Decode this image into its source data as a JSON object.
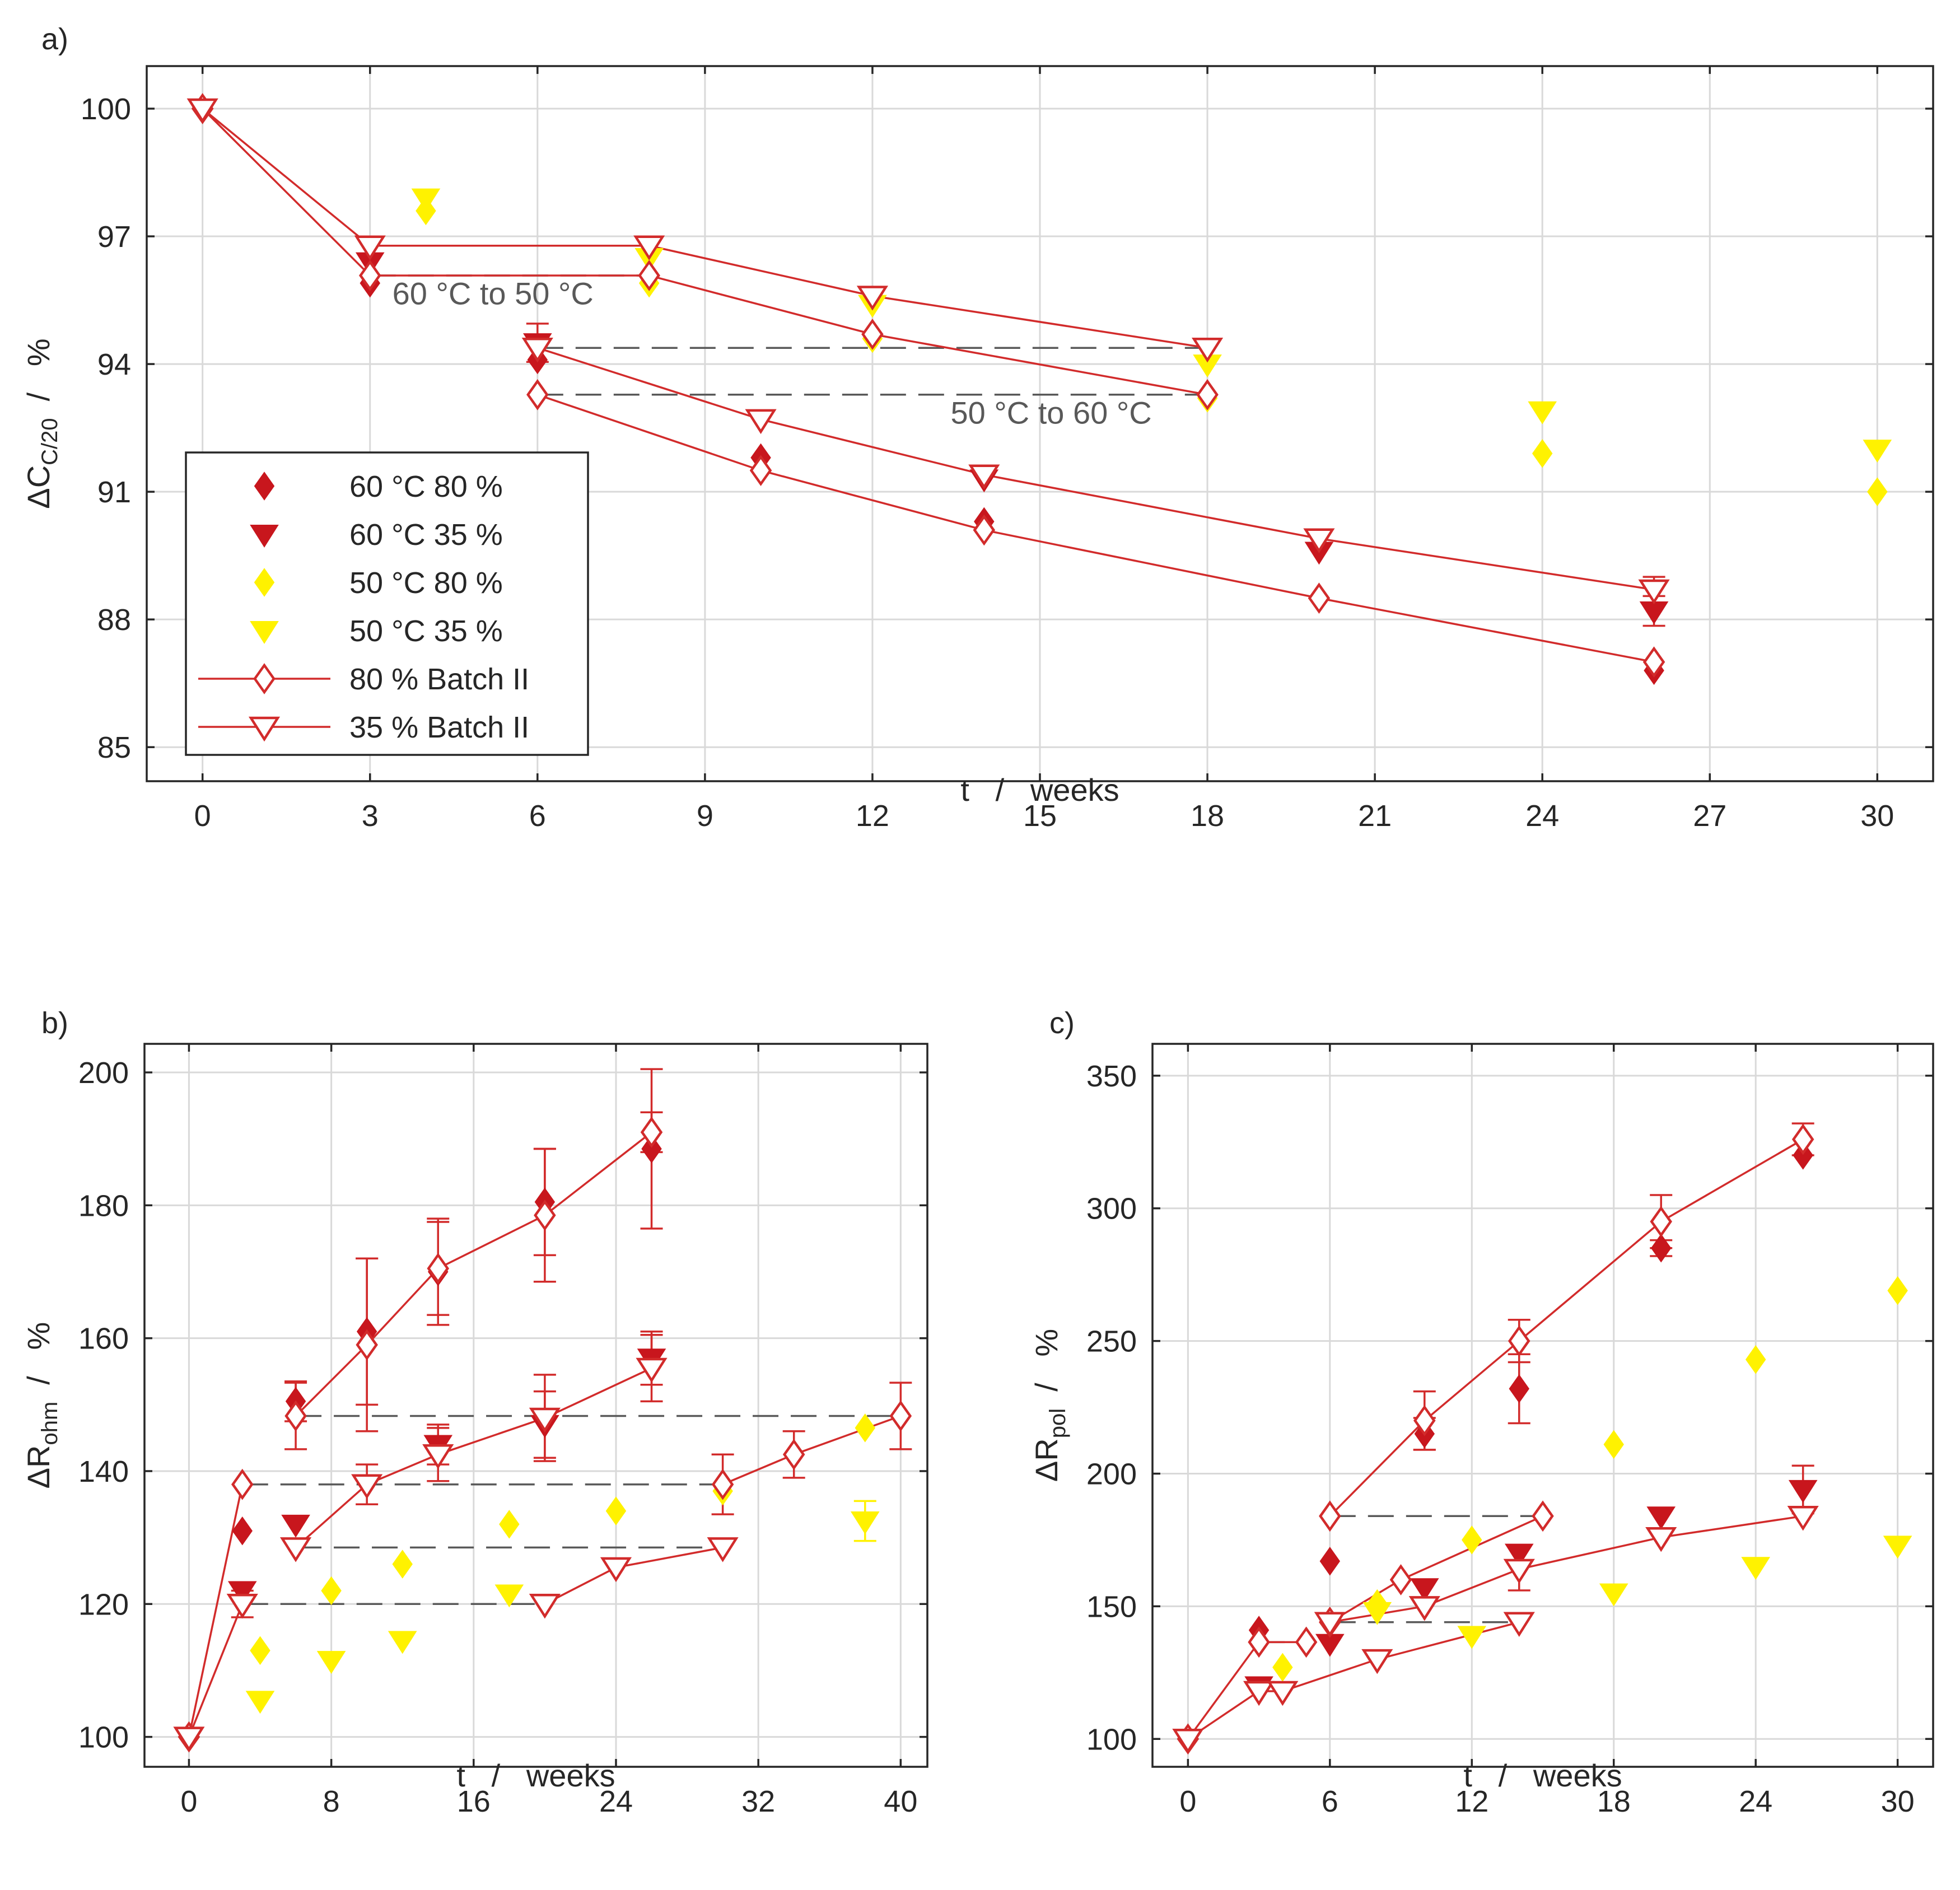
{
  "colors": {
    "dark_red": "#c8161d",
    "line_red": "#d22b2b",
    "yellow": "#fff200",
    "grid": "#d9d9d9",
    "axis": "#262626",
    "dash": "#595959"
  },
  "chart_data": [
    {
      "id": "a",
      "panel_label": "a)",
      "type": "scatter",
      "xlabel": "t   /   weeks",
      "ylabel_main": "ΔC",
      "ylabel_sub": "C/20",
      "ylabel_unit": "/   %",
      "xlim": [
        -1.0,
        31.0
      ],
      "ylim": [
        84.2,
        101.0
      ],
      "xticks": [
        0,
        3,
        6,
        9,
        12,
        15,
        18,
        21,
        24,
        27,
        30
      ],
      "yticks": [
        85,
        88,
        91,
        94,
        97,
        100
      ],
      "grid": true,
      "legend_position": "lower-left",
      "legend": [
        {
          "marker": "diamond",
          "filled": true,
          "color": "dark_red",
          "line": false,
          "label": "60 °C 80 %"
        },
        {
          "marker": "tri",
          "filled": true,
          "color": "dark_red",
          "line": false,
          "label": "60 °C 35 %"
        },
        {
          "marker": "diamond",
          "filled": true,
          "color": "yellow",
          "line": false,
          "label": "50 °C 80 %"
        },
        {
          "marker": "tri",
          "filled": true,
          "color": "yellow",
          "line": false,
          "label": "50 °C 35 %"
        },
        {
          "marker": "diamond",
          "filled": false,
          "color": "line_red",
          "line": true,
          "label": "80 % Batch II"
        },
        {
          "marker": "tri",
          "filled": false,
          "color": "line_red",
          "line": true,
          "label": "35 % Batch II"
        }
      ],
      "annotations": [
        {
          "text": "60 °C to 50 °C",
          "x": 3.4,
          "y": 95.4
        },
        {
          "text": "50 °C to 60 °C",
          "x": 13.4,
          "y": 92.6
        }
      ],
      "dashed_lines": [
        {
          "x1": 3,
          "x2": 8,
          "y": 96.78
        },
        {
          "x1": 3,
          "x2": 8,
          "y": 96.08
        },
        {
          "x1": 6,
          "x2": 18,
          "y": 94.38
        },
        {
          "x1": 6,
          "x2": 18,
          "y": 93.28
        }
      ],
      "series": [
        {
          "name": "60 °C 80 %",
          "marker": "diamond",
          "filled": true,
          "color": "dark_red",
          "line": false,
          "x": [
            0,
            3,
            6,
            10,
            14,
            20,
            26
          ],
          "y": [
            100,
            95.9,
            94.1,
            91.8,
            90.3,
            88.5,
            86.8
          ]
        },
        {
          "name": "60 °C 35 %",
          "marker": "tri",
          "filled": true,
          "color": "dark_red",
          "line": false,
          "x": [
            0,
            3,
            6,
            14,
            20,
            26
          ],
          "y": [
            100,
            96.4,
            94.5,
            91.3,
            89.6,
            88.2
          ],
          "err": [
            0,
            0,
            0.45,
            0,
            0,
            0.35
          ]
        },
        {
          "name": "50 °C 80 %",
          "marker": "diamond",
          "filled": true,
          "color": "yellow",
          "line": false,
          "x": [
            4,
            8,
            12,
            18,
            24,
            30
          ],
          "y": [
            97.6,
            95.9,
            94.6,
            93.2,
            91.9,
            91.0
          ]
        },
        {
          "name": "50 °C 35 %",
          "marker": "tri",
          "filled": true,
          "color": "yellow",
          "line": false,
          "x": [
            4,
            8,
            12,
            18,
            24,
            30
          ],
          "y": [
            97.9,
            96.5,
            95.4,
            94.0,
            92.9,
            92.0
          ]
        },
        {
          "name": "80 % Batch II",
          "marker": "diamond",
          "filled": false,
          "color": "line_red",
          "line": true,
          "x": [
            0,
            3,
            8,
            12,
            18
          ],
          "y": [
            100,
            96.08,
            96.08,
            94.7,
            93.28
          ]
        },
        {
          "name": "80 % Batch II",
          "marker": "diamond",
          "filled": false,
          "color": "line_red",
          "line": true,
          "x": [
            6,
            10,
            14,
            20,
            26
          ],
          "y": [
            93.28,
            91.5,
            90.1,
            88.5,
            87.0
          ]
        },
        {
          "name": "35 % Batch II",
          "marker": "tri",
          "filled": false,
          "color": "line_red",
          "line": true,
          "x": [
            0,
            3,
            8,
            12,
            18
          ],
          "y": [
            100,
            96.78,
            96.78,
            95.6,
            94.38
          ]
        },
        {
          "name": "35 % Batch II",
          "marker": "tri",
          "filled": false,
          "color": "line_red",
          "line": true,
          "x": [
            6,
            10,
            14,
            20,
            26
          ],
          "y": [
            94.38,
            92.7,
            91.4,
            89.9,
            88.7
          ],
          "err": [
            0,
            0,
            0,
            0,
            0.3
          ]
        }
      ]
    },
    {
      "id": "b",
      "panel_label": "b)",
      "type": "scatter",
      "xlabel": "t   /   weeks",
      "ylabel_main": "ΔR",
      "ylabel_sub": "ohm",
      "ylabel_unit": "/   %",
      "xlim": [
        -2.5,
        41.5
      ],
      "ylim": [
        95.5,
        204.3
      ],
      "xticks": [
        0,
        8,
        16,
        24,
        32,
        40
      ],
      "yticks": [
        100,
        120,
        140,
        160,
        180,
        200
      ],
      "grid": true,
      "dashed_lines": [
        {
          "x1": 6,
          "x2": 40,
          "y": 148.3
        },
        {
          "x1": 3,
          "x2": 30,
          "y": 138.0
        },
        {
          "x1": 6,
          "x2": 30,
          "y": 128.5
        },
        {
          "x1": 3,
          "x2": 20,
          "y": 120.0
        }
      ],
      "series": [
        {
          "name": "60 °C 80 %",
          "marker": "diamond",
          "filled": true,
          "color": "dark_red",
          "line": false,
          "x": [
            0,
            3,
            6,
            10,
            14,
            20,
            26
          ],
          "y": [
            100,
            131,
            150.5,
            161,
            170,
            180.5,
            188.5
          ],
          "err": [
            0,
            0,
            3,
            11,
            8,
            8,
            12
          ]
        },
        {
          "name": "60 °C 35 %",
          "marker": "tri",
          "filled": true,
          "color": "dark_red",
          "line": false,
          "x": [
            0,
            3,
            6,
            14,
            20,
            26
          ],
          "y": [
            100,
            122,
            132,
            144,
            147,
            157
          ],
          "err": [
            0,
            0,
            0,
            3,
            5,
            4
          ]
        },
        {
          "name": "50 °C 80 %",
          "marker": "diamond",
          "filled": true,
          "color": "yellow",
          "line": false,
          "x": [
            4,
            8,
            12,
            18,
            24,
            30,
            38
          ],
          "y": [
            113,
            122,
            126,
            132,
            134,
            137,
            146.5
          ]
        },
        {
          "name": "50 °C 35 %",
          "marker": "tri",
          "filled": true,
          "color": "yellow",
          "line": false,
          "x": [
            4,
            8,
            12,
            18,
            38
          ],
          "y": [
            105.5,
            111.5,
            114.5,
            121.5,
            132.5
          ],
          "err": [
            0,
            0,
            0,
            0,
            3
          ]
        },
        {
          "name": "80 % Batch II",
          "marker": "diamond",
          "filled": false,
          "color": "line_red",
          "line": true,
          "x": [
            0,
            3
          ],
          "y": [
            100,
            138
          ]
        },
        {
          "name": "80 % Batch II",
          "marker": "diamond",
          "filled": false,
          "color": "line_red",
          "line": true,
          "x": [
            6,
            10,
            14,
            20,
            26
          ],
          "y": [
            148.3,
            159,
            170.5,
            178.5,
            191
          ],
          "err": [
            5,
            13,
            7,
            10,
            3
          ]
        },
        {
          "name": "80 % Batch II",
          "marker": "diamond",
          "filled": false,
          "color": "line_red",
          "line": true,
          "x": [
            30,
            34,
            40
          ],
          "y": [
            138,
            142.5,
            148.3
          ],
          "err": [
            4.5,
            3.5,
            5
          ]
        },
        {
          "name": "35 % Batch II",
          "marker": "tri",
          "filled": false,
          "color": "line_red",
          "line": true,
          "x": [
            0,
            3
          ],
          "y": [
            100,
            120
          ],
          "err": [
            0,
            2
          ]
        },
        {
          "name": "35 % Batch II",
          "marker": "tri",
          "filled": false,
          "color": "line_red",
          "line": true,
          "x": [
            6,
            10,
            14,
            20,
            26
          ],
          "y": [
            128.5,
            138,
            142.5,
            148,
            155.5
          ],
          "err": [
            0,
            3,
            4,
            6.5,
            5
          ]
        },
        {
          "name": "35 % Batch II",
          "marker": "tri",
          "filled": false,
          "color": "line_red",
          "line": true,
          "x": [
            20,
            24,
            30
          ],
          "y": [
            120,
            125.5,
            128.5
          ]
        }
      ]
    },
    {
      "id": "c",
      "panel_label": "c)",
      "type": "scatter",
      "xlabel": "t   /   weeks",
      "ylabel_main": "ΔR",
      "ylabel_sub": "pol",
      "ylabel_unit": "/   %",
      "xlim": [
        -1.5,
        31.5
      ],
      "ylim": [
        89.5,
        362.0
      ],
      "xticks": [
        0,
        6,
        12,
        18,
        24,
        30
      ],
      "yticks": [
        100,
        150,
        200,
        250,
        300,
        350
      ],
      "grid": true,
      "dashed_lines": [
        {
          "x1": 6,
          "x2": 15,
          "y": 184
        },
        {
          "x1": 3,
          "x2": 5,
          "y": 136.5
        },
        {
          "x1": 6,
          "x2": 14,
          "y": 144
        }
      ],
      "series": [
        {
          "name": "60 °C 80 %",
          "marker": "diamond",
          "filled": true,
          "color": "dark_red",
          "line": false,
          "x": [
            0,
            3,
            6,
            10,
            14,
            20,
            26
          ],
          "y": [
            100,
            141,
            167,
            215,
            232,
            285,
            320
          ],
          "err": [
            0,
            0,
            0,
            6,
            13,
            3,
            0
          ]
        },
        {
          "name": "60 °C 35 %",
          "marker": "tri",
          "filled": true,
          "color": "dark_red",
          "line": false,
          "x": [
            3,
            6,
            10,
            14,
            20,
            26
          ],
          "y": [
            120,
            136,
            157,
            170,
            184,
            194
          ],
          "err": [
            0,
            0,
            0,
            0,
            0,
            9
          ]
        },
        {
          "name": "50 °C 80 %",
          "marker": "diamond",
          "filled": true,
          "color": "yellow",
          "line": false,
          "x": [
            4,
            8,
            12,
            18,
            24,
            30
          ],
          "y": [
            127,
            151,
            175,
            211,
            243,
            269
          ]
        },
        {
          "name": "50 °C 35 %",
          "marker": "tri",
          "filled": true,
          "color": "yellow",
          "line": false,
          "x": [
            8,
            12,
            18,
            24,
            30
          ],
          "y": [
            148,
            139,
            155,
            165,
            173
          ]
        },
        {
          "name": "80 % Batch II",
          "marker": "diamond",
          "filled": false,
          "color": "line_red",
          "line": true,
          "x": [
            0,
            3,
            5
          ],
          "y": [
            100,
            136.5,
            136.5
          ]
        },
        {
          "name": "80 % Batch II",
          "marker": "diamond",
          "filled": false,
          "color": "line_red",
          "line": true,
          "x": [
            6,
            10,
            14,
            20,
            26
          ],
          "y": [
            184,
            220,
            250,
            295,
            326
          ],
          "err": [
            0,
            11,
            8,
            10,
            6
          ]
        },
        {
          "name": "80 % Batch II",
          "marker": "diamond",
          "filled": false,
          "color": "line_red",
          "line": true,
          "x": [
            6,
            9,
            15
          ],
          "y": [
            144,
            160,
            184
          ]
        },
        {
          "name": "35 % Batch II",
          "marker": "tri",
          "filled": false,
          "color": "line_red",
          "line": true,
          "x": [
            0,
            3,
            4,
            8,
            14
          ],
          "y": [
            100,
            118,
            118,
            130,
            144
          ]
        },
        {
          "name": "35 % Batch II",
          "marker": "tri",
          "filled": false,
          "color": "line_red",
          "line": true,
          "x": [
            6,
            10,
            14,
            20,
            26
          ],
          "y": [
            144,
            150,
            164,
            176,
            184
          ],
          "err": [
            0,
            0,
            8,
            0,
            0
          ]
        }
      ]
    }
  ]
}
